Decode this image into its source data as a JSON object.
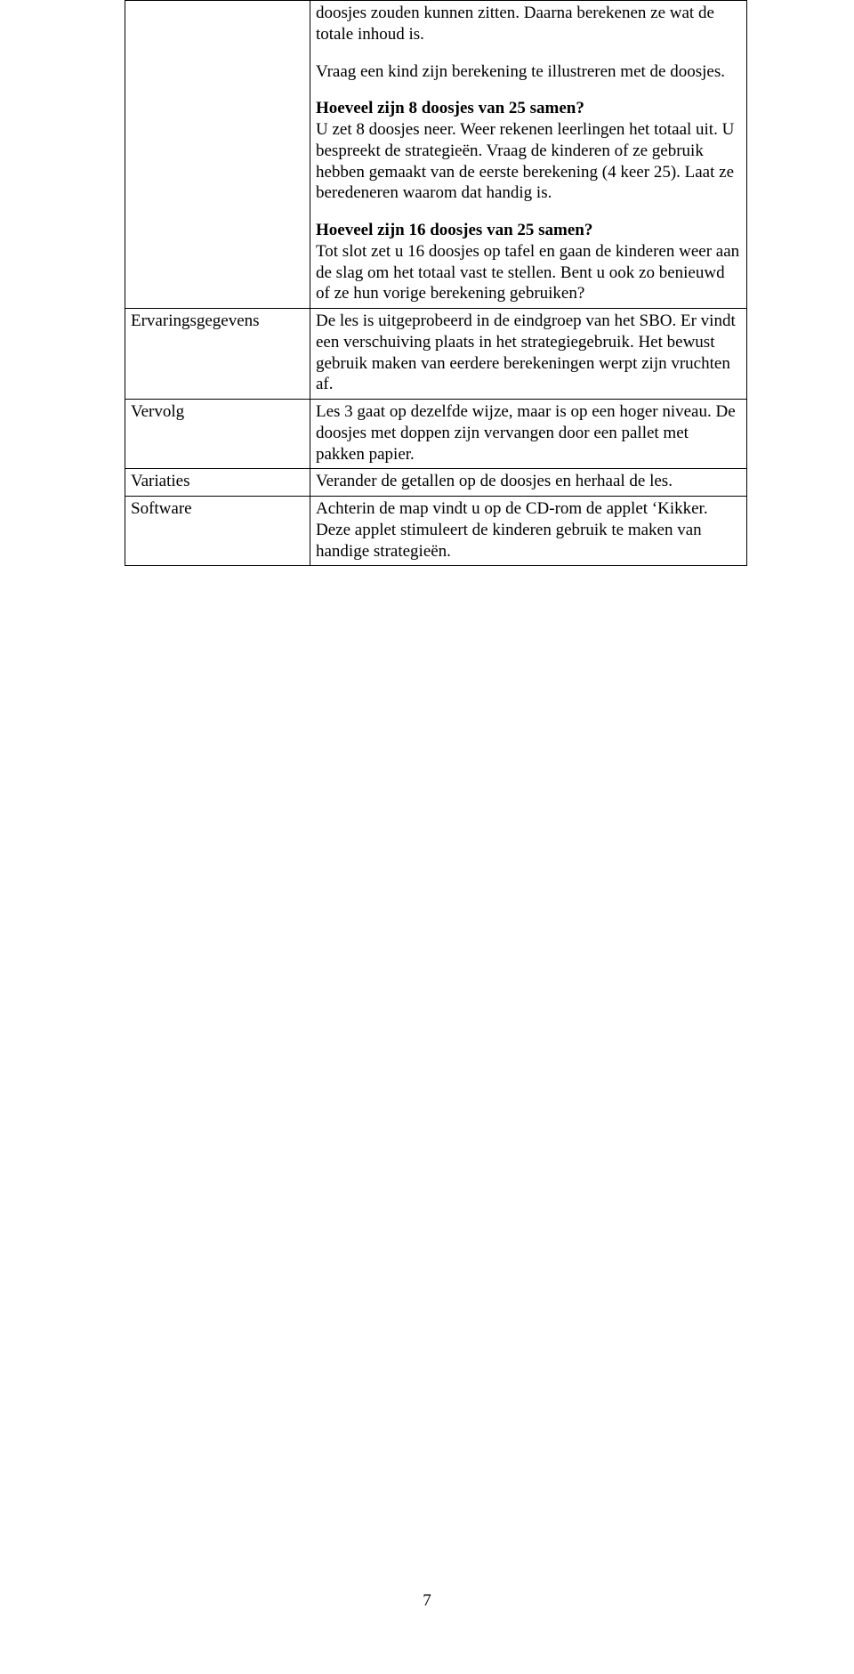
{
  "intro": {
    "p1": "doosjes zouden kunnen zitten. Daarna berekenen ze wat de totale inhoud is.",
    "p2": "Vraag een kind zijn berekening te illustreren met de doosjes.",
    "q1_heading": "Hoeveel zijn 8 doosjes van 25 samen?",
    "p3": "U zet 8 doosjes neer. Weer rekenen leerlingen het totaal uit. U bespreekt de strategieën. Vraag de kinderen of ze gebruik hebben gemaakt van de eerste berekening (4 keer 25). Laat ze beredeneren waarom dat handig is.",
    "q2_heading": "Hoeveel zijn 16 doosjes van 25 samen?",
    "p4": "Tot slot zet u 16 doosjes op tafel en gaan de kinderen weer aan de slag om het totaal vast te stellen. Bent u ook zo benieuwd of ze hun vorige berekening gebruiken?"
  },
  "rows": {
    "ervaringsgegevens": {
      "label": "Ervaringsgegevens",
      "text": "De les is uitgeprobeerd in de eindgroep van het SBO. Er vindt een verschuiving plaats in het strategiegebruik. Het bewust gebruik maken van eerdere berekeningen werpt zijn vruchten af."
    },
    "vervolg": {
      "label": "Vervolg",
      "text": "Les 3 gaat op dezelfde wijze, maar is op een hoger niveau. De doosjes met doppen zijn vervangen door een pallet met pakken papier."
    },
    "variaties": {
      "label": "Variaties",
      "text": "Verander de getallen op de doosjes en herhaal de les."
    },
    "software": {
      "label": "Software",
      "text": "Achterin de map vindt u op de CD-rom de applet ‘Kikker. Deze applet stimuleert de kinderen gebruik te maken van handige strategieën."
    }
  },
  "page_number": "7"
}
